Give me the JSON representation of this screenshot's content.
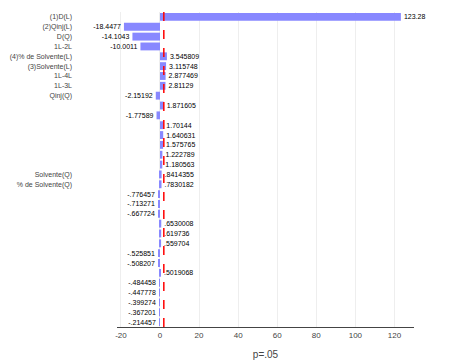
{
  "chart_data": {
    "type": "bar",
    "orientation": "horizontal",
    "categories": [
      "(1)D(L)",
      "(2)Qinj(L)",
      "D(Q)",
      "1L-2L",
      "(4)% de Solvente(L)",
      "(3)Solvente(L)",
      "1L-4L",
      "1L-3L",
      "Qinj(Q)",
      null,
      null,
      null,
      null,
      null,
      null,
      null,
      "Solvente(Q)",
      "% de Solvente(Q)",
      null,
      null,
      null,
      null,
      null,
      null,
      null,
      null,
      null,
      null,
      null,
      null,
      null,
      null
    ],
    "values": [
      123.28,
      -18.4477,
      -14.1043,
      -10.0011,
      3.545809,
      3.115748,
      2.877469,
      2.81129,
      -2.15192,
      1.871605,
      -1.77589,
      1.70144,
      1.640631,
      1.575765,
      1.222789,
      1.180563,
      0.8414355,
      0.7830182,
      -0.776457,
      -0.713271,
      -0.667724,
      0.6530008,
      0.619736,
      0.559704,
      -0.525851,
      -0.508207,
      0.5019068,
      -0.484458,
      -0.447778,
      -0.399274,
      -0.367201,
      -0.214457
    ],
    "value_labels": [
      "123.28",
      "-18.4477",
      "-14.1043",
      "-10.0011",
      "3.545809",
      "3.115748",
      "2.877469",
      "2.81129",
      "-2.15192",
      "1.871605",
      "-1.77589",
      "1.70144",
      "1.640631",
      "1.575765",
      "1.222789",
      "1.180563",
      ".8414355",
      ".7830182",
      "-.776457",
      "-.713271",
      "-.667724",
      ".6530008",
      ".619736",
      ".559704",
      "-.525851",
      "-.508207",
      ".5019068",
      "-.484458",
      "-.447778",
      "-.399274",
      "-.367201",
      "-.214457"
    ],
    "data_labels": true,
    "color": "#8888FF",
    "xlabel": "p=.05",
    "xlim": [
      -22,
      130
    ],
    "xticks": [
      -20,
      0,
      20,
      40,
      60,
      80,
      100,
      120
    ],
    "grid": true,
    "reference_line": {
      "x": 1.96,
      "color": "#FF0000",
      "line_style": "dashed"
    }
  }
}
